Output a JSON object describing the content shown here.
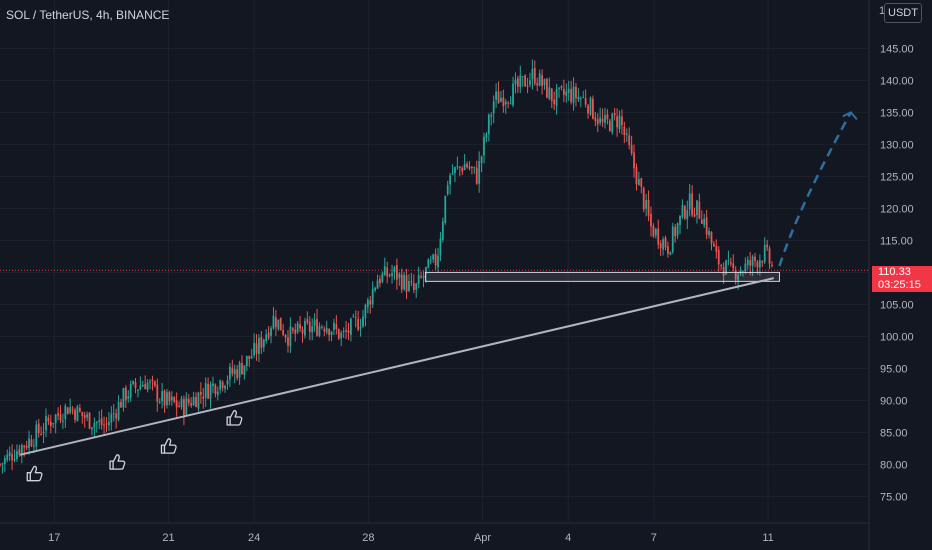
{
  "symbol_title": "SOL / TetherUS, 4h, BINANCE",
  "price_axis": {
    "unit": "USDT",
    "top_partial": "1"
  },
  "current_price": {
    "value": "110.33",
    "countdown": "03:25:15",
    "color": "#f23645"
  },
  "colors": {
    "up": "#26a69a",
    "down": "#ef5350",
    "background": "#131722",
    "grid": "#1e222d",
    "trendline": "#b2b5be",
    "projection": "#2e6f9e"
  },
  "icons": [
    "thumbs-up-icon",
    "thumbs-up-icon",
    "thumbs-up-icon",
    "thumbs-up-icon"
  ],
  "chart_data": {
    "type": "candlestick",
    "y_ticks": [
      75,
      80,
      85,
      90,
      95,
      100,
      105,
      110,
      115,
      120,
      125,
      130,
      135,
      140,
      145
    ],
    "x_ticks": [
      {
        "label": "17",
        "day": 17
      },
      {
        "label": "21",
        "day": 21
      },
      {
        "label": "24",
        "day": 24
      },
      {
        "label": "28",
        "day": 28
      },
      {
        "label": "Apr",
        "day": 32
      },
      {
        "label": "4",
        "day": 35
      },
      {
        "label": "7",
        "day": 38
      },
      {
        "label": "11",
        "day": 42
      }
    ],
    "ylim": [
      71,
      151
    ],
    "xlim": [
      15.1,
      45.5
    ],
    "path": [
      [
        15.1,
        80
      ],
      [
        15.6,
        82
      ],
      [
        16.2,
        84
      ],
      [
        16.9,
        87
      ],
      [
        17.5,
        89
      ],
      [
        18.2,
        87
      ],
      [
        18.8,
        86
      ],
      [
        19.5,
        91
      ],
      [
        20.2,
        93
      ],
      [
        20.8,
        90
      ],
      [
        21.5,
        89
      ],
      [
        22.1,
        91
      ],
      [
        22.8,
        93
      ],
      [
        23.5,
        95
      ],
      [
        24.1,
        98
      ],
      [
        24.7,
        103
      ],
      [
        25.2,
        100
      ],
      [
        25.8,
        101
      ],
      [
        26.5,
        102
      ],
      [
        27.1,
        100
      ],
      [
        27.8,
        103
      ],
      [
        28.3,
        109
      ],
      [
        28.9,
        110
      ],
      [
        29.6,
        107
      ],
      [
        30.0,
        110
      ],
      [
        30.4,
        112
      ],
      [
        30.8,
        125
      ],
      [
        31.4,
        127
      ],
      [
        31.8,
        125
      ],
      [
        32.4,
        137
      ],
      [
        33.0,
        138
      ],
      [
        33.8,
        141
      ],
      [
        34.5,
        137
      ],
      [
        35.0,
        138
      ],
      [
        35.6,
        137
      ],
      [
        36.2,
        133
      ],
      [
        36.8,
        134
      ],
      [
        37.4,
        125
      ],
      [
        37.9,
        117
      ],
      [
        38.5,
        114
      ],
      [
        39.2,
        121
      ],
      [
        39.7,
        119
      ],
      [
        40.2,
        112
      ],
      [
        40.7,
        110
      ],
      [
        41.3,
        111
      ],
      [
        41.9,
        113
      ],
      [
        42.2,
        110.33
      ]
    ],
    "support_zone": {
      "from_day": 30.0,
      "to_day": 42.4,
      "low": 108.6,
      "high": 110.0
    },
    "trendline": {
      "from": [
        15.8,
        81.5
      ],
      "to": [
        42.2,
        109.1
      ]
    },
    "projection": {
      "from": [
        42.4,
        111
      ],
      "to": [
        44.9,
        135
      ]
    },
    "thumbs": [
      {
        "day": 16.3,
        "price": 79.8
      },
      {
        "day": 19.2,
        "price": 81.6
      },
      {
        "day": 21.0,
        "price": 84.1
      },
      {
        "day": 23.3,
        "price": 88.5
      }
    ],
    "current_line_price": 110.33
  }
}
